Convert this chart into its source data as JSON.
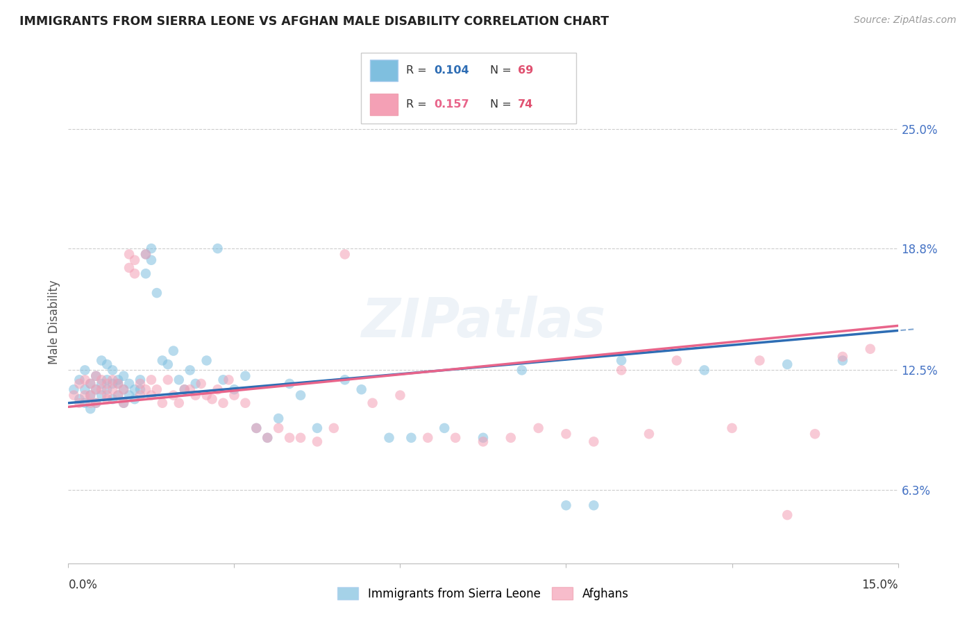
{
  "title": "IMMIGRANTS FROM SIERRA LEONE VS AFGHAN MALE DISABILITY CORRELATION CHART",
  "source": "Source: ZipAtlas.com",
  "ylabel": "Male Disability",
  "ytick_labels": [
    "6.3%",
    "12.5%",
    "18.8%",
    "25.0%"
  ],
  "ytick_values": [
    0.063,
    0.125,
    0.188,
    0.25
  ],
  "xmin": 0.0,
  "xmax": 0.15,
  "ymin": 0.025,
  "ymax": 0.275,
  "watermark": "ZIPatlas",
  "blue_color": "#7fbfdf",
  "pink_color": "#f4a0b5",
  "regression_blue_color": "#2e6db4",
  "regression_pink_color": "#e8648a",
  "legend_r_color": "#2e6db4",
  "legend_n_color": "#e05070",
  "background_color": "#ffffff",
  "grid_color": "#cccccc",
  "title_color": "#222222",
  "axis_label_color": "#555555",
  "blue_r": 0.104,
  "blue_n": 69,
  "pink_r": 0.157,
  "pink_n": 74,
  "blue_x": [
    0.001,
    0.002,
    0.002,
    0.003,
    0.003,
    0.003,
    0.004,
    0.004,
    0.004,
    0.005,
    0.005,
    0.005,
    0.006,
    0.006,
    0.006,
    0.007,
    0.007,
    0.007,
    0.008,
    0.008,
    0.008,
    0.009,
    0.009,
    0.009,
    0.01,
    0.01,
    0.01,
    0.011,
    0.011,
    0.012,
    0.012,
    0.013,
    0.013,
    0.014,
    0.014,
    0.015,
    0.015,
    0.016,
    0.017,
    0.018,
    0.019,
    0.02,
    0.021,
    0.022,
    0.023,
    0.025,
    0.027,
    0.028,
    0.03,
    0.032,
    0.034,
    0.036,
    0.038,
    0.04,
    0.042,
    0.045,
    0.05,
    0.053,
    0.058,
    0.062,
    0.068,
    0.075,
    0.082,
    0.09,
    0.095,
    0.1,
    0.115,
    0.13,
    0.14
  ],
  "blue_y": [
    0.115,
    0.12,
    0.11,
    0.125,
    0.115,
    0.108,
    0.118,
    0.112,
    0.105,
    0.122,
    0.115,
    0.108,
    0.13,
    0.118,
    0.112,
    0.128,
    0.115,
    0.12,
    0.125,
    0.11,
    0.118,
    0.12,
    0.112,
    0.118,
    0.115,
    0.122,
    0.108,
    0.118,
    0.112,
    0.115,
    0.11,
    0.12,
    0.115,
    0.185,
    0.175,
    0.188,
    0.182,
    0.165,
    0.13,
    0.128,
    0.135,
    0.12,
    0.115,
    0.125,
    0.118,
    0.13,
    0.188,
    0.12,
    0.115,
    0.122,
    0.095,
    0.09,
    0.1,
    0.118,
    0.112,
    0.095,
    0.12,
    0.115,
    0.09,
    0.09,
    0.095,
    0.09,
    0.125,
    0.055,
    0.055,
    0.13,
    0.125,
    0.128,
    0.13
  ],
  "pink_x": [
    0.001,
    0.002,
    0.002,
    0.003,
    0.003,
    0.004,
    0.004,
    0.004,
    0.005,
    0.005,
    0.005,
    0.006,
    0.006,
    0.007,
    0.007,
    0.007,
    0.008,
    0.008,
    0.009,
    0.009,
    0.01,
    0.01,
    0.011,
    0.011,
    0.012,
    0.012,
    0.013,
    0.013,
    0.014,
    0.014,
    0.015,
    0.015,
    0.016,
    0.017,
    0.018,
    0.019,
    0.02,
    0.021,
    0.022,
    0.023,
    0.024,
    0.025,
    0.026,
    0.027,
    0.028,
    0.029,
    0.03,
    0.032,
    0.034,
    0.036,
    0.038,
    0.04,
    0.042,
    0.045,
    0.048,
    0.05,
    0.055,
    0.06,
    0.065,
    0.07,
    0.075,
    0.08,
    0.085,
    0.09,
    0.095,
    0.1,
    0.105,
    0.11,
    0.12,
    0.125,
    0.13,
    0.135,
    0.14,
    0.145
  ],
  "pink_y": [
    0.112,
    0.118,
    0.108,
    0.12,
    0.112,
    0.118,
    0.112,
    0.108,
    0.115,
    0.122,
    0.108,
    0.115,
    0.12,
    0.112,
    0.118,
    0.11,
    0.115,
    0.12,
    0.112,
    0.118,
    0.108,
    0.115,
    0.185,
    0.178,
    0.182,
    0.175,
    0.118,
    0.112,
    0.115,
    0.185,
    0.12,
    0.112,
    0.115,
    0.108,
    0.12,
    0.112,
    0.108,
    0.115,
    0.115,
    0.112,
    0.118,
    0.112,
    0.11,
    0.115,
    0.108,
    0.12,
    0.112,
    0.108,
    0.095,
    0.09,
    0.095,
    0.09,
    0.09,
    0.088,
    0.095,
    0.185,
    0.108,
    0.112,
    0.09,
    0.09,
    0.088,
    0.09,
    0.095,
    0.092,
    0.088,
    0.125,
    0.092,
    0.13,
    0.095,
    0.13,
    0.05,
    0.092,
    0.132,
    0.136
  ]
}
